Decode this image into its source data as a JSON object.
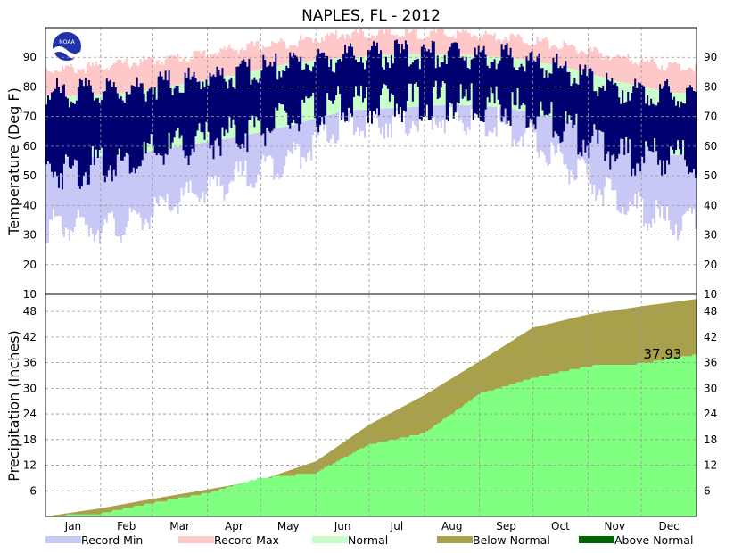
{
  "chart_data": [
    {
      "type": "bar",
      "title": "NAPLES, FL - 2012",
      "ylabel": "Temperature (Deg F)",
      "ylim": [
        10,
        100
      ],
      "yticks": [
        "20",
        "30",
        "40",
        "50",
        "60",
        "70",
        "80",
        "90"
      ],
      "x_axis": "days of year 2012",
      "grid": true,
      "series_names": [
        "Record Min",
        "Record Max",
        "Normal"
      ],
      "normal_low_monthly": [
        56,
        57,
        60,
        63,
        67,
        72,
        73,
        74,
        73,
        69,
        63,
        57
      ],
      "normal_high_monthly": [
        77,
        78,
        81,
        84,
        88,
        90,
        91,
        91,
        90,
        87,
        82,
        78
      ],
      "record_min_monthly": [
        33,
        33,
        42,
        49,
        56,
        67,
        69,
        70,
        67,
        55,
        42,
        34
      ],
      "record_max_monthly": [
        86,
        88,
        90,
        93,
        95,
        98,
        98,
        98,
        97,
        94,
        90,
        87
      ],
      "observed_low_monthly": [
        52,
        55,
        60,
        64,
        69,
        74,
        75,
        75,
        74,
        67,
        57,
        56
      ],
      "observed_high_monthly": [
        78,
        79,
        82,
        84,
        88,
        90,
        91,
        91,
        90,
        86,
        79,
        78
      ]
    },
    {
      "type": "area",
      "ylabel": "Precipitation (Inches)",
      "ylim": [
        0,
        52
      ],
      "yticks": [
        "6",
        "12",
        "18",
        "24",
        "30",
        "36",
        "42",
        "48"
      ],
      "series_names": [
        "Below Normal",
        "Above Normal"
      ],
      "normal_cumulative_month_end": [
        1.9,
        4.1,
        6.3,
        8.5,
        12.9,
        21.5,
        28.4,
        36.3,
        44.2,
        47.3,
        49.2,
        50.9
      ],
      "observed_cumulative_month_end": [
        0.7,
        3.1,
        5.5,
        9.0,
        10.2,
        16.9,
        19.5,
        28.7,
        32.4,
        35.2,
        35.8,
        37.93
      ],
      "annotation": "37.93"
    }
  ],
  "months": [
    "Jan",
    "Feb",
    "Mar",
    "Apr",
    "May",
    "Jun",
    "Jul",
    "Aug",
    "Sep",
    "Oct",
    "Nov",
    "Dec"
  ],
  "temp_bottom_tick": "10",
  "legend": [
    {
      "label": "Record Min",
      "color": "#c8c8f6"
    },
    {
      "label": "Record Max",
      "color": "#ffc8c8"
    },
    {
      "label": "Normal",
      "color": "#c8ffc8"
    },
    {
      "label": "Below Normal",
      "color": "#a8a04a"
    },
    {
      "label": "Above Normal",
      "color": "#006600"
    }
  ],
  "colors": {
    "observed": "#000070",
    "precip_observed": "#80ff80",
    "precip_deficit": "#a8a04a",
    "grid": "#999999"
  }
}
